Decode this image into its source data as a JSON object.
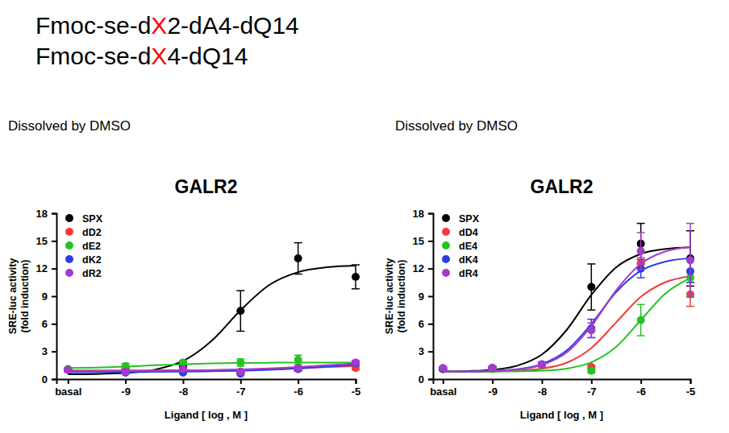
{
  "header": {
    "lines": [
      [
        {
          "text": "Fmoc-se-d"
        },
        {
          "text": "X",
          "color": "#ff0000"
        },
        {
          "text": "2-dA4-dQ14"
        }
      ],
      [
        {
          "text": "Fmoc-se-d"
        },
        {
          "text": "X",
          "color": "#ff0000"
        },
        {
          "text": "4-dQ14"
        }
      ]
    ]
  },
  "chart_data": [
    {
      "type": "scatter",
      "title": "GALR2",
      "subtitle": "Dissolved by DMSO",
      "xlabel": "Ligand [ log , M ]",
      "ylabel": [
        "SRE-luc activity",
        "(fold induction)"
      ],
      "xlim": [
        -10.2,
        -5
      ],
      "ylim": [
        0,
        18
      ],
      "xticks": [
        {
          "value": -10,
          "label": "basal"
        },
        -9,
        -8,
        -7,
        -6,
        -5
      ],
      "yticks": [
        0,
        3,
        6,
        9,
        12,
        15,
        18
      ],
      "legend": "upper left",
      "marker": "circle",
      "grid": false,
      "x": [
        -10,
        -9,
        -8,
        -7,
        -6,
        -5
      ],
      "fit_x": [
        -10,
        -9.5,
        -9,
        -8.5,
        -8,
        -7.5,
        -7,
        -6.5,
        -6,
        -5.5,
        -5
      ],
      "series": [
        {
          "name": "SPX",
          "color": "#000000",
          "values": [
            1.0,
            1.0,
            1.5,
            7.4,
            13.1,
            11.1
          ],
          "errors": [
            0.2,
            0.2,
            0.2,
            2.2,
            1.7,
            1.3
          ],
          "fit": [
            0.52,
            0.55,
            0.67,
            1.01,
            1.97,
            4.17,
            7.47,
            10.22,
            11.61,
            12.14,
            12.32
          ]
        },
        {
          "name": "dD2",
          "color": "#f23c3c",
          "values": [
            1.0,
            0.9,
            1.0,
            0.8,
            1.1,
            1.2
          ],
          "errors": [
            0.1,
            0.1,
            0.1,
            0.1,
            0.2,
            0.2
          ],
          "fit": [
            0.95,
            0.95,
            0.95,
            0.95,
            0.96,
            0.97,
            1.0,
            1.05,
            1.15,
            1.3,
            1.4
          ]
        },
        {
          "name": "dE2",
          "color": "#22c422",
          "values": [
            1.1,
            1.4,
            1.8,
            1.8,
            2.1,
            1.7
          ],
          "errors": [
            0.1,
            0.3,
            0.2,
            0.4,
            0.5,
            0.2
          ],
          "fit": [
            1.2,
            1.25,
            1.35,
            1.5,
            1.6,
            1.7,
            1.75,
            1.78,
            1.8,
            1.8,
            1.8
          ]
        },
        {
          "name": "dK2",
          "color": "#2a3ee8",
          "values": [
            1.0,
            0.7,
            0.7,
            0.6,
            1.1,
            1.7
          ],
          "errors": [
            0.1,
            0.1,
            0.1,
            0.1,
            0.2,
            0.2
          ],
          "fit": [
            0.75,
            0.75,
            0.76,
            0.78,
            0.8,
            0.85,
            0.9,
            1.0,
            1.15,
            1.35,
            1.55
          ]
        },
        {
          "name": "dR2",
          "color": "#a63acb",
          "values": [
            1.0,
            0.8,
            1.1,
            0.8,
            1.2,
            1.8
          ],
          "errors": [
            0.1,
            0.1,
            0.1,
            0.1,
            0.2,
            0.2
          ],
          "fit": [
            0.85,
            0.86,
            0.88,
            0.9,
            0.93,
            0.98,
            1.05,
            1.15,
            1.3,
            1.5,
            1.7
          ]
        }
      ]
    },
    {
      "type": "scatter",
      "title": "GALR2",
      "subtitle": "Dissolved by DMSO",
      "xlabel": "Ligand [ log , M ]",
      "ylabel": [
        "SRE-luc activity",
        "(fold induction)"
      ],
      "xlim": [
        -10.2,
        -5
      ],
      "ylim": [
        0,
        18
      ],
      "xticks": [
        {
          "value": -10,
          "label": "basal"
        },
        -9,
        -8,
        -7,
        -6,
        -5
      ],
      "yticks": [
        0,
        3,
        6,
        9,
        12,
        15,
        18
      ],
      "legend": "upper left",
      "marker": "circle",
      "grid": false,
      "x": [
        -10,
        -9,
        -8,
        -7,
        -6,
        -5
      ],
      "fit_x": [
        -10,
        -9.5,
        -9,
        -8.5,
        -8,
        -7.5,
        -7,
        -6.5,
        -6,
        -5.5,
        -5
      ],
      "series": [
        {
          "name": "SPX",
          "color": "#000000",
          "values": [
            1.1,
            1.2,
            1.6,
            10.0,
            14.7,
            13.1
          ],
          "errors": [
            0.2,
            0.2,
            0.2,
            2.5,
            2.2,
            3.0
          ],
          "fit": [
            0.82,
            0.87,
            1.01,
            1.45,
            2.66,
            5.33,
            9.14,
            12.13,
            13.59,
            14.13,
            14.31
          ]
        },
        {
          "name": "dD4",
          "color": "#f23c3c",
          "values": [
            1.1,
            1.1,
            1.5,
            1.3,
            12.6,
            9.2
          ],
          "errors": [
            0.1,
            0.1,
            0.2,
            0.2,
            0.6,
            1.3
          ],
          "fit": [
            0.8,
            0.81,
            0.83,
            0.91,
            1.13,
            1.77,
            3.37,
            6.15,
            8.93,
            10.53,
            11.17
          ]
        },
        {
          "name": "dE4",
          "color": "#22c422",
          "values": [
            1.1,
            1.1,
            1.5,
            0.9,
            6.4,
            11.0
          ],
          "errors": [
            0.1,
            0.1,
            0.2,
            0.2,
            1.7,
            2.0
          ],
          "fit": [
            0.8,
            0.8,
            0.81,
            0.84,
            0.91,
            1.14,
            1.82,
            3.49,
            6.4,
            9.31,
            10.98
          ]
        },
        {
          "name": "dK4",
          "color": "#2a3ee8",
          "values": [
            1.1,
            1.2,
            1.6,
            5.5,
            12.0,
            11.7
          ],
          "errors": [
            0.1,
            0.1,
            0.2,
            1.0,
            1.0,
            1.2
          ],
          "fit": [
            0.81,
            0.83,
            0.89,
            1.07,
            1.63,
            3.09,
            5.98,
            9.44,
            11.76,
            12.76,
            13.13
          ]
        },
        {
          "name": "dR4",
          "color": "#a63acb",
          "values": [
            1.2,
            1.2,
            1.6,
            5.3,
            13.9,
            12.9
          ],
          "errors": [
            0.1,
            0.1,
            0.2,
            0.8,
            2.0,
            4.0
          ],
          "fit": [
            0.81,
            0.82,
            0.88,
            1.04,
            1.53,
            2.88,
            5.76,
            9.63,
            12.52,
            13.87,
            14.36
          ]
        }
      ]
    }
  ]
}
